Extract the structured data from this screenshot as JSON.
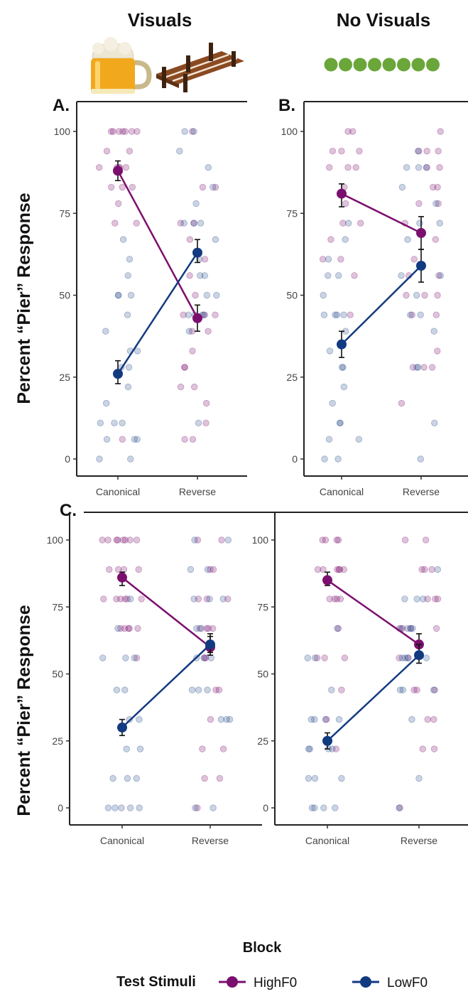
{
  "headers": {
    "visuals": "Visuals",
    "no_visuals": "No Visuals"
  },
  "y_title": "Percent “Pier” Response",
  "x_title": "Block",
  "legend": {
    "title": "Test Stimuli",
    "items": [
      {
        "label": "HighF0",
        "color": "#7B0F6E"
      },
      {
        "label": "LowF0",
        "color": "#123A80"
      }
    ]
  },
  "icons": [
    "beer-mug-icon",
    "wooden-pier-icon",
    "green-dots-icon"
  ],
  "chart_data": [
    {
      "panel": "A.",
      "type": "scatter",
      "categories": [
        "Canonical",
        "Reverse"
      ],
      "ylim": [
        0,
        100
      ],
      "yticks": [
        0,
        25,
        50,
        75,
        100
      ],
      "series": [
        {
          "name": "HighF0",
          "color": "#7B0F6E",
          "means": [
            88,
            43
          ],
          "err_low": [
            85,
            39
          ],
          "err_high": [
            91,
            47
          ],
          "raw": [
            [
              100,
              100,
              100,
              100,
              100,
              100,
              100,
              94,
              94,
              89,
              89,
              89,
              89,
              89,
              83,
              83,
              83,
              78,
              72,
              72,
              6
            ],
            [
              100,
              83,
              83,
              72,
              72,
              67,
              61,
              56,
              50,
              44,
              44,
              44,
              39,
              39,
              33,
              28,
              28,
              22,
              22,
              17,
              11,
              6,
              6
            ]
          ]
        },
        {
          "name": "LowF0",
          "color": "#123A80",
          "means": [
            26,
            63
          ],
          "err_low": [
            23,
            60
          ],
          "err_high": [
            30,
            67
          ],
          "raw": [
            [
              67,
              61,
              56,
              50,
              50,
              50,
              44,
              39,
              33,
              33,
              28,
              28,
              22,
              17,
              11,
              11,
              11,
              6,
              6,
              6,
              0,
              0
            ],
            [
              100,
              100,
              94,
              89,
              83,
              78,
              72,
              72,
              72,
              67,
              61,
              56,
              56,
              50,
              50,
              44,
              44,
              44,
              44,
              39,
              11
            ]
          ]
        }
      ]
    },
    {
      "panel": "B.",
      "type": "scatter",
      "categories": [
        "Canonical",
        "Reverse"
      ],
      "ylim": [
        0,
        100
      ],
      "yticks": [
        0,
        25,
        50,
        75,
        100
      ],
      "series": [
        {
          "name": "HighF0",
          "color": "#7B0F6E",
          "means": [
            81,
            69
          ],
          "err_low": [
            77,
            64
          ],
          "err_high": [
            84,
            74
          ],
          "raw": [
            [
              100,
              100,
              94,
              94,
              94,
              89,
              89,
              89,
              83,
              78,
              72,
              72,
              67,
              61,
              61,
              56,
              44
            ],
            [
              100,
              94,
              94,
              94,
              89,
              89,
              83,
              83,
              78,
              78,
              72,
              67,
              61,
              56,
              56,
              50,
              50,
              50,
              44,
              44,
              33,
              28,
              28,
              28,
              17
            ]
          ]
        },
        {
          "name": "LowF0",
          "color": "#123A80",
          "means": [
            35,
            59
          ],
          "err_low": [
            31,
            54
          ],
          "err_high": [
            39,
            64
          ],
          "raw": [
            [
              72,
              67,
              61,
              56,
              56,
              50,
              44,
              44,
              44,
              44,
              39,
              33,
              28,
              28,
              22,
              17,
              11,
              11,
              6,
              6,
              0,
              0
            ],
            [
              94,
              89,
              89,
              89,
              83,
              78,
              72,
              72,
              67,
              56,
              56,
              50,
              44,
              44,
              39,
              28,
              28,
              11,
              0
            ]
          ]
        }
      ]
    },
    {
      "panel": "C. Visuals",
      "type": "scatter",
      "categories": [
        "Canonical",
        "Reverse"
      ],
      "ylim": [
        0,
        100
      ],
      "yticks": [
        0,
        25,
        50,
        75,
        100
      ],
      "series": [
        {
          "name": "HighF0",
          "color": "#7B0F6E",
          "means": [
            86,
            60
          ],
          "err_low": [
            83,
            57
          ],
          "err_high": [
            88,
            64
          ],
          "raw": [
            [
              100,
              100,
              100,
              100,
              100,
              100,
              100,
              100,
              89,
              89,
              89,
              89,
              78,
              78,
              78,
              78,
              78,
              78,
              67,
              67,
              67,
              67,
              67,
              56
            ],
            [
              100,
              100,
              89,
              89,
              78,
              78,
              78,
              67,
              67,
              67,
              67,
              56,
              56,
              44,
              44,
              33,
              22,
              22,
              11,
              11,
              0
            ]
          ]
        },
        {
          "name": "LowF0",
          "color": "#123A80",
          "means": [
            30,
            61
          ],
          "err_low": [
            27,
            58
          ],
          "err_high": [
            33,
            65
          ],
          "raw": [
            [
              78,
              67,
              56,
              56,
              56,
              44,
              44,
              33,
              33,
              22,
              22,
              11,
              11,
              11,
              0,
              0,
              0,
              0,
              0
            ],
            [
              100,
              100,
              89,
              89,
              78,
              78,
              78,
              67,
              67,
              56,
              56,
              56,
              44,
              44,
              44,
              33,
              33,
              33,
              0,
              0
            ]
          ]
        }
      ]
    },
    {
      "panel": "C. No Visuals",
      "type": "scatter",
      "categories": [
        "Canonical",
        "Reverse"
      ],
      "ylim": [
        0,
        100
      ],
      "yticks": [
        0,
        25,
        50,
        75,
        100
      ],
      "series": [
        {
          "name": "HighF0",
          "color": "#7B0F6E",
          "means": [
            85,
            61
          ],
          "err_low": [
            83,
            58
          ],
          "err_high": [
            88,
            65
          ],
          "raw": [
            [
              100,
              100,
              100,
              100,
              89,
              89,
              89,
              89,
              89,
              89,
              78,
              78,
              78,
              78,
              67,
              56,
              56,
              56,
              44,
              33,
              22
            ],
            [
              100,
              100,
              89,
              89,
              89,
              78,
              78,
              78,
              67,
              67,
              67,
              67,
              56,
              56,
              44,
              44,
              44,
              33,
              33,
              22,
              22,
              0
            ]
          ]
        },
        {
          "name": "LowF0",
          "color": "#123A80",
          "means": [
            25,
            57
          ],
          "err_low": [
            22,
            54
          ],
          "err_high": [
            28,
            61
          ],
          "raw": [
            [
              67,
              56,
              56,
              44,
              33,
              33,
              33,
              33,
              22,
              22,
              22,
              22,
              11,
              11,
              11,
              0,
              0,
              0,
              0
            ],
            [
              89,
              78,
              78,
              78,
              67,
              67,
              67,
              67,
              56,
              56,
              56,
              56,
              44,
              44,
              44,
              33,
              11,
              0
            ]
          ]
        }
      ]
    }
  ]
}
